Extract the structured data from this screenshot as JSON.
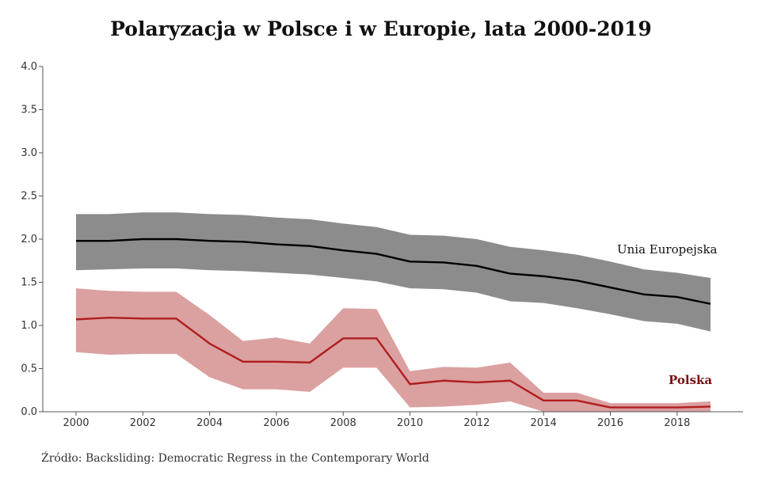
{
  "title": "Polaryzacja w Polsce i w Europie, lata 2000-2019",
  "source": "Źródło: Backsliding: Democratic Regress in the Contemporary World",
  "chart_data": {
    "type": "line",
    "x": [
      2000,
      2001,
      2002,
      2003,
      2004,
      2005,
      2006,
      2007,
      2008,
      2009,
      2010,
      2011,
      2012,
      2013,
      2014,
      2015,
      2016,
      2017,
      2018,
      2019
    ],
    "xlim": [
      2000,
      2019
    ],
    "ylim": [
      0,
      4
    ],
    "x_ticks": [
      "2000",
      "2002",
      "2004",
      "2006",
      "2008",
      "2010",
      "2012",
      "2014",
      "2016",
      "2018"
    ],
    "y_ticks": [
      "0.0",
      "0.5",
      "1.0",
      "1.5",
      "2.0",
      "2.5",
      "3.0",
      "3.5",
      "4.0"
    ],
    "grid": false,
    "series": [
      {
        "name": "Unia Europejska",
        "color": "#000000",
        "band_color": "#8c8c8c",
        "values": [
          1.98,
          1.98,
          2.0,
          2.0,
          1.98,
          1.97,
          1.94,
          1.92,
          1.87,
          1.83,
          1.74,
          1.73,
          1.69,
          1.6,
          1.57,
          1.52,
          1.44,
          1.36,
          1.33,
          1.25
        ],
        "upper": [
          2.29,
          2.29,
          2.31,
          2.31,
          2.29,
          2.28,
          2.25,
          2.23,
          2.18,
          2.14,
          2.05,
          2.04,
          2.0,
          1.91,
          1.87,
          1.82,
          1.74,
          1.65,
          1.61,
          1.55
        ],
        "lower": [
          1.64,
          1.65,
          1.66,
          1.66,
          1.64,
          1.63,
          1.61,
          1.59,
          1.55,
          1.51,
          1.43,
          1.42,
          1.38,
          1.28,
          1.26,
          1.2,
          1.13,
          1.05,
          1.02,
          0.93
        ]
      },
      {
        "name": "Polska",
        "color": "#b01e1e",
        "band_color": "#dba0a0",
        "values": [
          1.07,
          1.09,
          1.08,
          1.08,
          0.79,
          0.58,
          0.58,
          0.57,
          0.85,
          0.85,
          0.32,
          0.36,
          0.34,
          0.36,
          0.13,
          0.13,
          0.05,
          0.05,
          0.05,
          0.06
        ],
        "upper": [
          1.43,
          1.4,
          1.39,
          1.39,
          1.12,
          0.82,
          0.86,
          0.79,
          1.2,
          1.19,
          0.47,
          0.52,
          0.51,
          0.57,
          0.22,
          0.22,
          0.1,
          0.1,
          0.1,
          0.12
        ],
        "lower": [
          0.69,
          0.66,
          0.67,
          0.67,
          0.4,
          0.26,
          0.26,
          0.23,
          0.51,
          0.51,
          0.05,
          0.06,
          0.08,
          0.12,
          0.0,
          0.0,
          0.0,
          0.0,
          0.0,
          0.0
        ]
      }
    ]
  }
}
